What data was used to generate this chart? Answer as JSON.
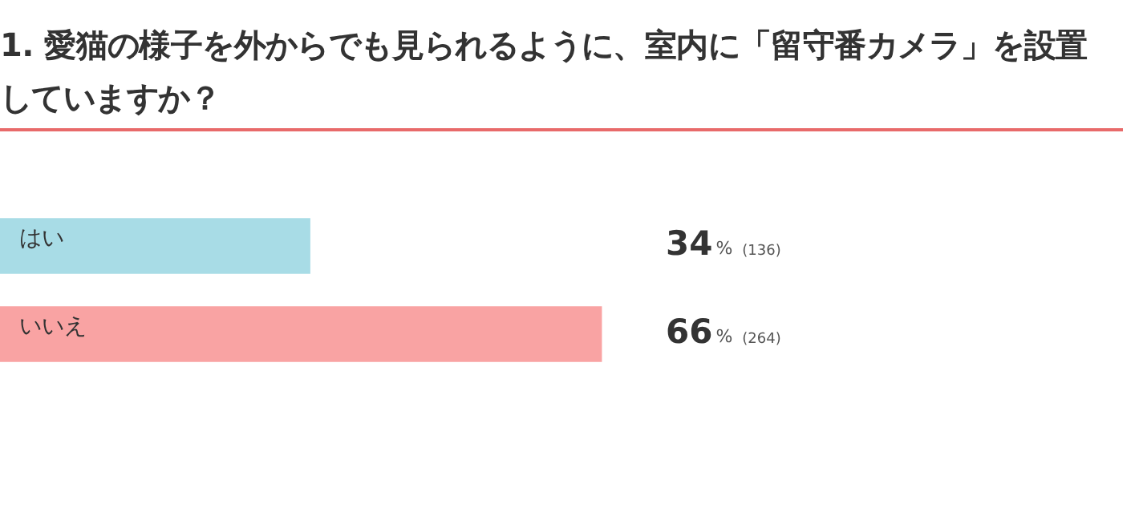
{
  "chart_data": {
    "type": "bar",
    "orientation": "horizontal",
    "title": "1. 愛猫の様子を外からでも見られるように、室内に「留守番カメラ」を設置していますか？",
    "categories": [
      "はい",
      "いいえ"
    ],
    "values": [
      34,
      66
    ],
    "colors": [
      "#a8dce6",
      "#f9a3a3"
    ],
    "value_labels": [
      "34% (136)",
      "66% (264)"
    ],
    "tick_labels": false
  }
}
